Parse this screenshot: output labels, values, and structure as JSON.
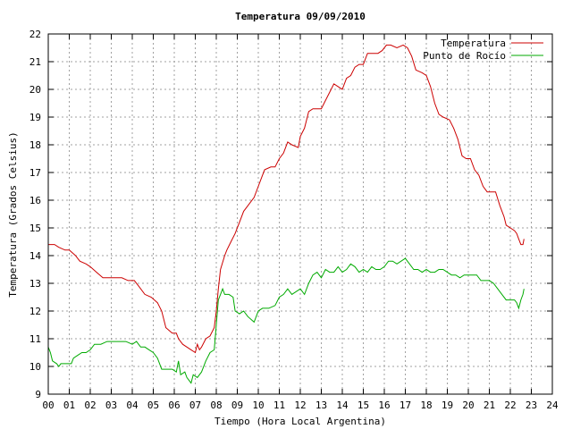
{
  "chart_data": {
    "type": "line",
    "title": "Temperatura 09/09/2010",
    "xlabel": "Tiempo (Hora Local Argentina)",
    "ylabel": "Temperatura (Grados Celsius)",
    "xlim": [
      0,
      24
    ],
    "ylim": [
      9,
      22
    ],
    "x_ticks": [
      "00",
      "01",
      "02",
      "03",
      "04",
      "05",
      "06",
      "07",
      "08",
      "09",
      "10",
      "11",
      "12",
      "13",
      "14",
      "15",
      "16",
      "17",
      "18",
      "19",
      "20",
      "21",
      "22",
      "23",
      "24"
    ],
    "y_ticks": [
      "9",
      "10",
      "11",
      "12",
      "13",
      "14",
      "15",
      "16",
      "17",
      "18",
      "19",
      "20",
      "21",
      "22"
    ],
    "grid": true,
    "legend_position": "top-right",
    "series": [
      {
        "name": "Temperatura",
        "color": "#cc0000",
        "points": [
          [
            0.0,
            14.4
          ],
          [
            0.3,
            14.4
          ],
          [
            0.5,
            14.3
          ],
          [
            0.8,
            14.2
          ],
          [
            1.0,
            14.2
          ],
          [
            1.3,
            14.0
          ],
          [
            1.5,
            13.8
          ],
          [
            1.8,
            13.7
          ],
          [
            2.0,
            13.6
          ],
          [
            2.3,
            13.4
          ],
          [
            2.6,
            13.2
          ],
          [
            3.0,
            13.2
          ],
          [
            3.5,
            13.2
          ],
          [
            3.8,
            13.1
          ],
          [
            4.1,
            13.1
          ],
          [
            4.3,
            12.9
          ],
          [
            4.6,
            12.6
          ],
          [
            4.9,
            12.5
          ],
          [
            5.2,
            12.3
          ],
          [
            5.4,
            12.0
          ],
          [
            5.6,
            11.4
          ],
          [
            5.9,
            11.2
          ],
          [
            6.1,
            11.2
          ],
          [
            6.2,
            11.0
          ],
          [
            6.4,
            10.8
          ],
          [
            6.6,
            10.7
          ],
          [
            6.8,
            10.6
          ],
          [
            7.0,
            10.5
          ],
          [
            7.1,
            10.8
          ],
          [
            7.2,
            10.6
          ],
          [
            7.3,
            10.7
          ],
          [
            7.5,
            11.0
          ],
          [
            7.7,
            11.1
          ],
          [
            7.9,
            11.4
          ],
          [
            8.0,
            12.0
          ],
          [
            8.1,
            12.8
          ],
          [
            8.2,
            13.5
          ],
          [
            8.4,
            14.0
          ],
          [
            8.5,
            14.2
          ],
          [
            8.7,
            14.5
          ],
          [
            8.9,
            14.8
          ],
          [
            9.1,
            15.2
          ],
          [
            9.3,
            15.6
          ],
          [
            9.5,
            15.8
          ],
          [
            9.8,
            16.1
          ],
          [
            10.0,
            16.5
          ],
          [
            10.2,
            16.9
          ],
          [
            10.3,
            17.1
          ],
          [
            10.6,
            17.2
          ],
          [
            10.8,
            17.2
          ],
          [
            11.0,
            17.5
          ],
          [
            11.2,
            17.7
          ],
          [
            11.4,
            18.1
          ],
          [
            11.6,
            18.0
          ],
          [
            11.9,
            17.9
          ],
          [
            12.0,
            18.3
          ],
          [
            12.2,
            18.6
          ],
          [
            12.4,
            19.2
          ],
          [
            12.6,
            19.3
          ],
          [
            12.8,
            19.3
          ],
          [
            13.0,
            19.3
          ],
          [
            13.2,
            19.6
          ],
          [
            13.4,
            19.9
          ],
          [
            13.6,
            20.2
          ],
          [
            13.8,
            20.1
          ],
          [
            14.0,
            20.0
          ],
          [
            14.2,
            20.4
          ],
          [
            14.4,
            20.5
          ],
          [
            14.6,
            20.8
          ],
          [
            14.8,
            20.9
          ],
          [
            15.0,
            20.9
          ],
          [
            15.2,
            21.3
          ],
          [
            15.4,
            21.3
          ],
          [
            15.7,
            21.3
          ],
          [
            15.9,
            21.4
          ],
          [
            16.1,
            21.6
          ],
          [
            16.3,
            21.6
          ],
          [
            16.6,
            21.5
          ],
          [
            16.9,
            21.6
          ],
          [
            17.1,
            21.5
          ],
          [
            17.3,
            21.2
          ],
          [
            17.5,
            20.7
          ],
          [
            17.8,
            20.6
          ],
          [
            18.0,
            20.5
          ],
          [
            18.2,
            20.1
          ],
          [
            18.4,
            19.5
          ],
          [
            18.6,
            19.1
          ],
          [
            18.8,
            19.0
          ],
          [
            19.1,
            18.9
          ],
          [
            19.3,
            18.6
          ],
          [
            19.5,
            18.2
          ],
          [
            19.7,
            17.6
          ],
          [
            19.9,
            17.5
          ],
          [
            20.1,
            17.5
          ],
          [
            20.3,
            17.1
          ],
          [
            20.5,
            16.9
          ],
          [
            20.7,
            16.5
          ],
          [
            20.9,
            16.3
          ],
          [
            21.3,
            16.3
          ],
          [
            21.5,
            15.8
          ],
          [
            21.7,
            15.4
          ],
          [
            21.8,
            15.1
          ],
          [
            22.0,
            15.0
          ],
          [
            22.2,
            14.9
          ],
          [
            22.3,
            14.8
          ],
          [
            22.4,
            14.6
          ],
          [
            22.5,
            14.4
          ],
          [
            22.6,
            14.4
          ],
          [
            22.65,
            14.6
          ]
        ]
      },
      {
        "name": "Punto de Rocío",
        "color": "#00aa00",
        "points": [
          [
            0.0,
            10.7
          ],
          [
            0.1,
            10.5
          ],
          [
            0.2,
            10.2
          ],
          [
            0.4,
            10.1
          ],
          [
            0.5,
            10.0
          ],
          [
            0.6,
            10.1
          ],
          [
            0.8,
            10.1
          ],
          [
            1.0,
            10.1
          ],
          [
            1.1,
            10.1
          ],
          [
            1.2,
            10.3
          ],
          [
            1.4,
            10.4
          ],
          [
            1.6,
            10.5
          ],
          [
            1.8,
            10.5
          ],
          [
            2.0,
            10.6
          ],
          [
            2.2,
            10.8
          ],
          [
            2.5,
            10.8
          ],
          [
            2.8,
            10.9
          ],
          [
            3.1,
            10.9
          ],
          [
            3.4,
            10.9
          ],
          [
            3.7,
            10.9
          ],
          [
            4.0,
            10.8
          ],
          [
            4.2,
            10.9
          ],
          [
            4.4,
            10.7
          ],
          [
            4.6,
            10.7
          ],
          [
            4.8,
            10.6
          ],
          [
            5.0,
            10.5
          ],
          [
            5.2,
            10.3
          ],
          [
            5.4,
            9.9
          ],
          [
            5.7,
            9.9
          ],
          [
            5.9,
            9.9
          ],
          [
            6.1,
            9.8
          ],
          [
            6.2,
            10.2
          ],
          [
            6.3,
            9.7
          ],
          [
            6.5,
            9.8
          ],
          [
            6.6,
            9.6
          ],
          [
            6.8,
            9.4
          ],
          [
            6.9,
            9.7
          ],
          [
            7.1,
            9.6
          ],
          [
            7.3,
            9.8
          ],
          [
            7.5,
            10.2
          ],
          [
            7.7,
            10.5
          ],
          [
            7.9,
            10.6
          ],
          [
            8.0,
            11.5
          ],
          [
            8.1,
            12.4
          ],
          [
            8.2,
            12.6
          ],
          [
            8.3,
            12.8
          ],
          [
            8.4,
            12.6
          ],
          [
            8.6,
            12.6
          ],
          [
            8.8,
            12.5
          ],
          [
            8.9,
            12.0
          ],
          [
            9.1,
            11.9
          ],
          [
            9.3,
            12.0
          ],
          [
            9.5,
            11.8
          ],
          [
            9.8,
            11.6
          ],
          [
            10.0,
            12.0
          ],
          [
            10.2,
            12.1
          ],
          [
            10.5,
            12.1
          ],
          [
            10.8,
            12.2
          ],
          [
            11.0,
            12.5
          ],
          [
            11.2,
            12.6
          ],
          [
            11.4,
            12.8
          ],
          [
            11.6,
            12.6
          ],
          [
            11.8,
            12.7
          ],
          [
            12.0,
            12.8
          ],
          [
            12.2,
            12.6
          ],
          [
            12.4,
            13.0
          ],
          [
            12.6,
            13.3
          ],
          [
            12.8,
            13.4
          ],
          [
            13.0,
            13.2
          ],
          [
            13.2,
            13.5
          ],
          [
            13.4,
            13.4
          ],
          [
            13.6,
            13.4
          ],
          [
            13.8,
            13.6
          ],
          [
            14.0,
            13.4
          ],
          [
            14.2,
            13.5
          ],
          [
            14.4,
            13.7
          ],
          [
            14.6,
            13.6
          ],
          [
            14.8,
            13.4
          ],
          [
            15.0,
            13.5
          ],
          [
            15.2,
            13.4
          ],
          [
            15.4,
            13.6
          ],
          [
            15.6,
            13.5
          ],
          [
            15.8,
            13.5
          ],
          [
            16.0,
            13.6
          ],
          [
            16.2,
            13.8
          ],
          [
            16.4,
            13.8
          ],
          [
            16.6,
            13.7
          ],
          [
            16.8,
            13.8
          ],
          [
            17.0,
            13.9
          ],
          [
            17.2,
            13.7
          ],
          [
            17.4,
            13.5
          ],
          [
            17.6,
            13.5
          ],
          [
            17.8,
            13.4
          ],
          [
            18.0,
            13.5
          ],
          [
            18.2,
            13.4
          ],
          [
            18.4,
            13.4
          ],
          [
            18.6,
            13.5
          ],
          [
            18.8,
            13.5
          ],
          [
            19.0,
            13.4
          ],
          [
            19.2,
            13.3
          ],
          [
            19.4,
            13.3
          ],
          [
            19.6,
            13.2
          ],
          [
            19.8,
            13.3
          ],
          [
            20.0,
            13.3
          ],
          [
            20.2,
            13.3
          ],
          [
            20.4,
            13.3
          ],
          [
            20.6,
            13.1
          ],
          [
            20.8,
            13.1
          ],
          [
            21.0,
            13.1
          ],
          [
            21.2,
            13.0
          ],
          [
            21.4,
            12.8
          ],
          [
            21.6,
            12.6
          ],
          [
            21.8,
            12.4
          ],
          [
            22.0,
            12.4
          ],
          [
            22.2,
            12.4
          ],
          [
            22.3,
            12.3
          ],
          [
            22.4,
            12.1
          ],
          [
            22.5,
            12.4
          ],
          [
            22.6,
            12.6
          ],
          [
            22.65,
            12.8
          ]
        ]
      }
    ]
  }
}
